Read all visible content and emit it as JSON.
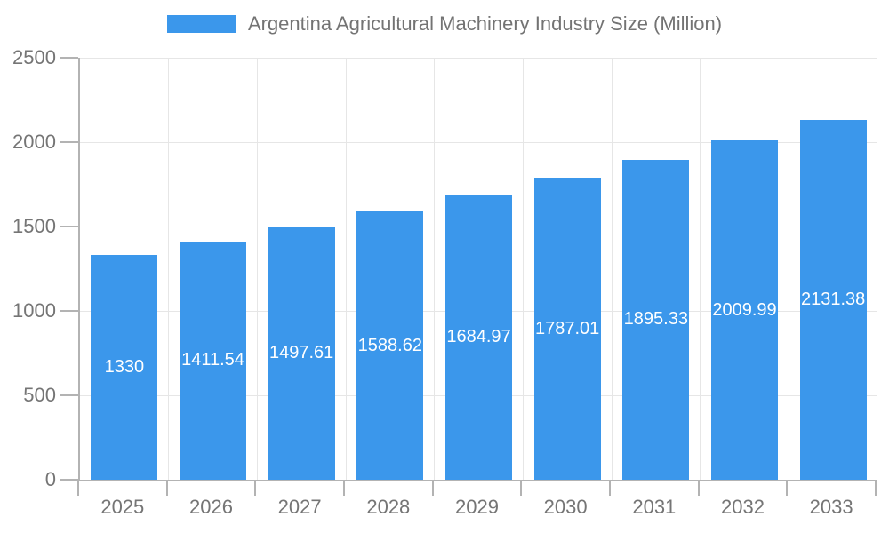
{
  "chart_data": {
    "type": "bar",
    "title": "Argentina Agricultural Machinery Industry Size (Million)",
    "categories": [
      "2025",
      "2026",
      "2027",
      "2028",
      "2029",
      "2030",
      "2031",
      "2032",
      "2033"
    ],
    "values": [
      1330,
      1411.54,
      1497.61,
      1588.62,
      1684.97,
      1787.01,
      1895.33,
      2009.99,
      2131.38
    ],
    "bar_labels": [
      "1330",
      "1411.54",
      "1497.61",
      "1588.62",
      "1684.97",
      "1787.01",
      "1895.33",
      "2009.99",
      "2131.38"
    ],
    "xlabel": "",
    "ylabel": "",
    "ylim": [
      0,
      2500
    ],
    "yticks": [
      0,
      500,
      1000,
      1500,
      2000,
      2500
    ],
    "grid": true,
    "legend_position": "top",
    "colors": {
      "bar": "#3B97EB",
      "grid": "#E6E6E6",
      "axis": "#B3B3B3",
      "text": "#757575",
      "bar_label": "#FFFFFF",
      "background": "#FFFFFF"
    }
  }
}
